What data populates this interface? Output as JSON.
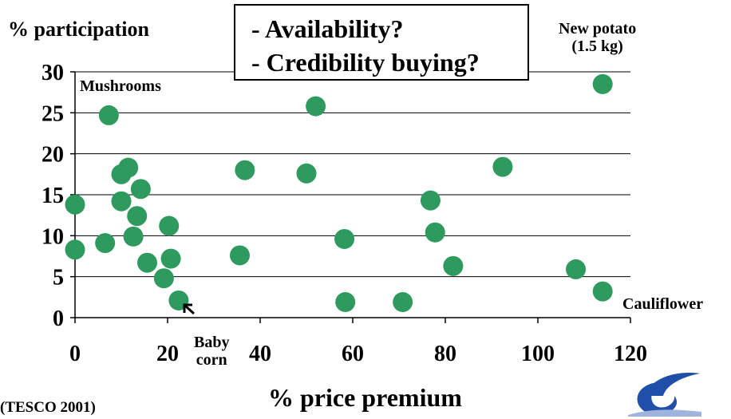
{
  "annotations": {
    "callout_line1": "- Availability?",
    "callout_line2": "- Credibility buying?",
    "mushrooms": "Mushrooms",
    "new_potato_line1": "New potato",
    "new_potato_line2": "(1.5 kg)",
    "cauliflower": "Cauliflower",
    "baby_corn_line1": "Baby",
    "baby_corn_line2": "corn"
  },
  "source": "(TESCO 2001)",
  "colors": {
    "point": "#2e9a5e",
    "grid": "#000000",
    "text": "#000000",
    "logo": "#1f4fa8"
  },
  "icons": {
    "arrow": "arrow-up-left-icon",
    "logo": "eu-framework-logo-icon"
  },
  "chart_data": {
    "type": "scatter",
    "xlabel": "% price premium",
    "ylabel": "% participation",
    "xlim": [
      0,
      120
    ],
    "ylim": [
      0,
      30
    ],
    "xticks": [
      0,
      20,
      40,
      60,
      80,
      100,
      120
    ],
    "yticks": [
      0,
      5,
      10,
      15,
      20,
      25,
      30
    ],
    "grid": "horizontal",
    "series": [
      {
        "points": [
          {
            "x": 0,
            "y": 8.3
          },
          {
            "x": 0,
            "y": 13.8
          },
          {
            "x": 6.5,
            "y": 9.1
          },
          {
            "x": 7.3,
            "y": 24.7
          },
          {
            "x": 10,
            "y": 17.5
          },
          {
            "x": 10,
            "y": 14.2
          },
          {
            "x": 11.5,
            "y": 18.3
          },
          {
            "x": 12.6,
            "y": 9.9
          },
          {
            "x": 13.4,
            "y": 12.4
          },
          {
            "x": 14.2,
            "y": 15.7
          },
          {
            "x": 15.6,
            "y": 6.7
          },
          {
            "x": 19.2,
            "y": 4.8
          },
          {
            "x": 20.3,
            "y": 11.2
          },
          {
            "x": 20.7,
            "y": 7.2
          },
          {
            "x": 22.4,
            "y": 2.1
          },
          {
            "x": 35.6,
            "y": 7.6
          },
          {
            "x": 36.7,
            "y": 18
          },
          {
            "x": 50,
            "y": 17.6
          },
          {
            "x": 52,
            "y": 25.8
          },
          {
            "x": 58.2,
            "y": 9.6
          },
          {
            "x": 58.4,
            "y": 1.9
          },
          {
            "x": 70.8,
            "y": 1.9
          },
          {
            "x": 76.8,
            "y": 14.3
          },
          {
            "x": 77.8,
            "y": 10.4
          },
          {
            "x": 81.7,
            "y": 6.3
          },
          {
            "x": 92.4,
            "y": 18.4
          },
          {
            "x": 108.2,
            "y": 5.9
          },
          {
            "x": 114,
            "y": 28.5
          },
          {
            "x": 114,
            "y": 3.2
          }
        ]
      }
    ]
  }
}
